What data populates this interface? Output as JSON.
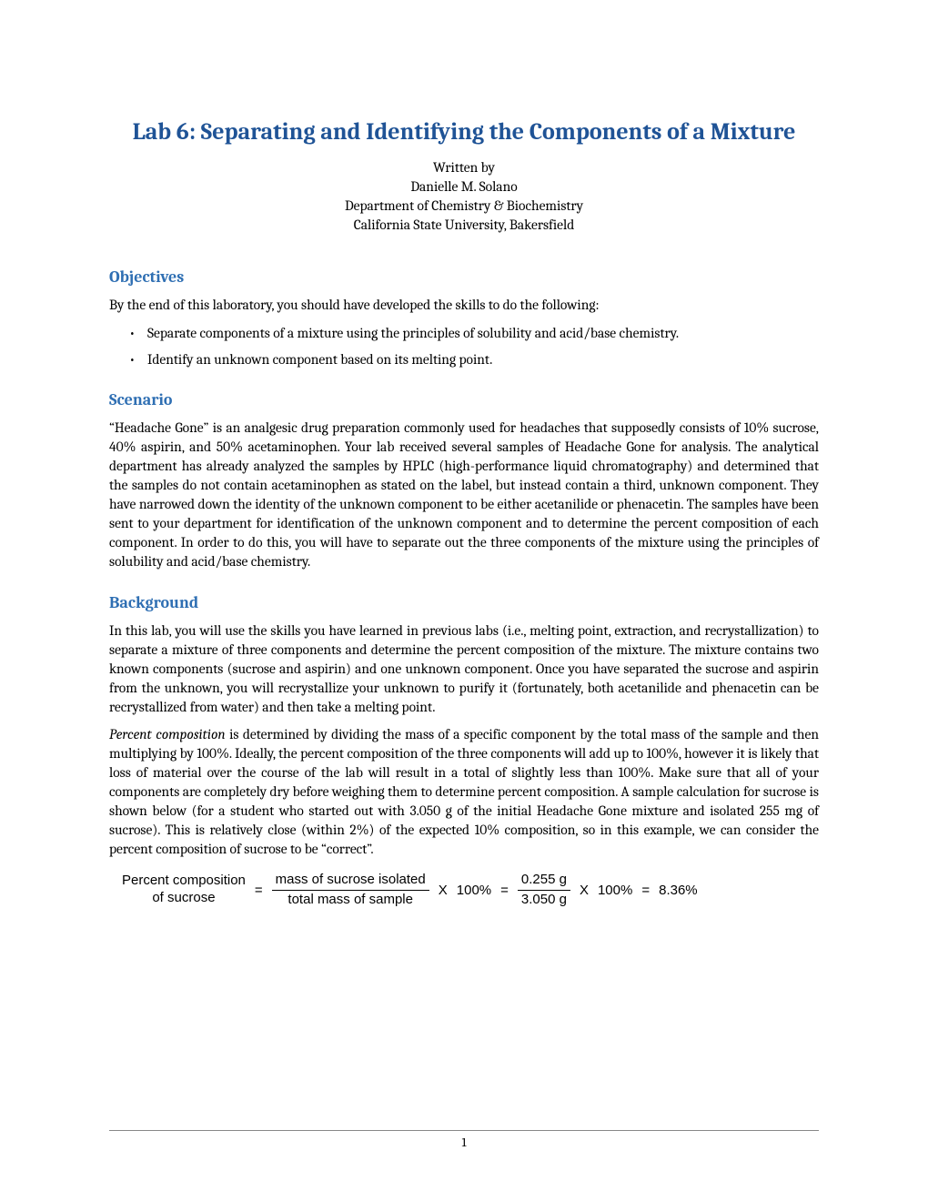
{
  "colors": {
    "title": "#1f5396",
    "section_heading": "#2f6fb3",
    "body_text": "#000000",
    "background": "#ffffff",
    "footer_line": "#888888"
  },
  "typography": {
    "body_font": "Cambria / Georgia serif",
    "equation_font": "Arial / Helvetica sans-serif",
    "title_size_pt": 19,
    "section_heading_size_pt": 13,
    "body_size_pt": 11
  },
  "title": "Lab 6: Separating and Identifying the Components of a Mixture",
  "byline": {
    "written_by": "Written by",
    "author": "Danielle M. Solano",
    "department": "Department of Chemistry & Biochemistry",
    "university": "California State University, Bakersfield"
  },
  "sections": {
    "objectives": {
      "heading": "Objectives",
      "intro": "By the end of this laboratory, you should have developed the skills to do the following:",
      "bullets": [
        "Separate components of a mixture using the principles of solubility and acid/base chemistry.",
        "Identify an unknown component based on its melting point."
      ]
    },
    "scenario": {
      "heading": "Scenario",
      "paragraph": "“Headache Gone” is an analgesic drug preparation commonly used for headaches that supposedly consists of 10% sucrose, 40% aspirin, and 50% acetaminophen. Your lab received several samples of Headache Gone for analysis. The analytical department has already analyzed the samples by HPLC (high-performance liquid chromatography) and determined that the samples do not contain acetaminophen as stated on the label, but instead contain a third, unknown component. They have narrowed down the identity of the unknown component to be either acetanilide or phenacetin. The samples have been sent to your department for identification of the unknown component and to determine the percent composition of each component. In order to do this, you will have to separate out the three components of the mixture using the principles of solubility and acid/base chemistry."
    },
    "background": {
      "heading": "Background",
      "paragraph1": "In this lab, you will use the skills you have learned in previous labs (i.e., melting point, extraction, and recrystallization) to separate a mixture of three components and determine the percent composition of the mixture. The mixture contains two known components (sucrose and aspirin) and one unknown component. Once you have separated the sucrose and aspirin from the unknown, you will recrystallize your unknown to purify it (fortunately, both acetanilide and phenacetin can be recrystallized from water) and then take a melting point.",
      "paragraph2_lead": "Percent composition",
      "paragraph2_rest": " is determined by dividing the mass of a specific component by the total mass of the sample and then multiplying by 100%. Ideally, the percent composition of the three components will add up to 100%, however it is likely that loss of material over the course of the lab will result in a total of slightly less than 100%. Make sure that all of your components are completely dry before weighing them to determine percent composition. A sample calculation for sucrose is shown below (for a student who started out with 3.050 g of the initial Headache Gone mixture and isolated 255 mg of sucrose). This is relatively close (within 2%) of the expected 10% composition, so in this example, we can consider the percent composition of sucrose to be “correct”."
    }
  },
  "equation": {
    "lhs_top": "Percent composition",
    "lhs_bottom": "of sucrose",
    "eq": "=",
    "frac1_num": "mass of sucrose isolated",
    "frac1_den": "total mass of sample",
    "times": "X",
    "hundred": "100%",
    "frac2_num": "0.255 g",
    "frac2_den": "3.050 g",
    "result": "8.36%"
  },
  "footer": {
    "page_number": "1"
  }
}
